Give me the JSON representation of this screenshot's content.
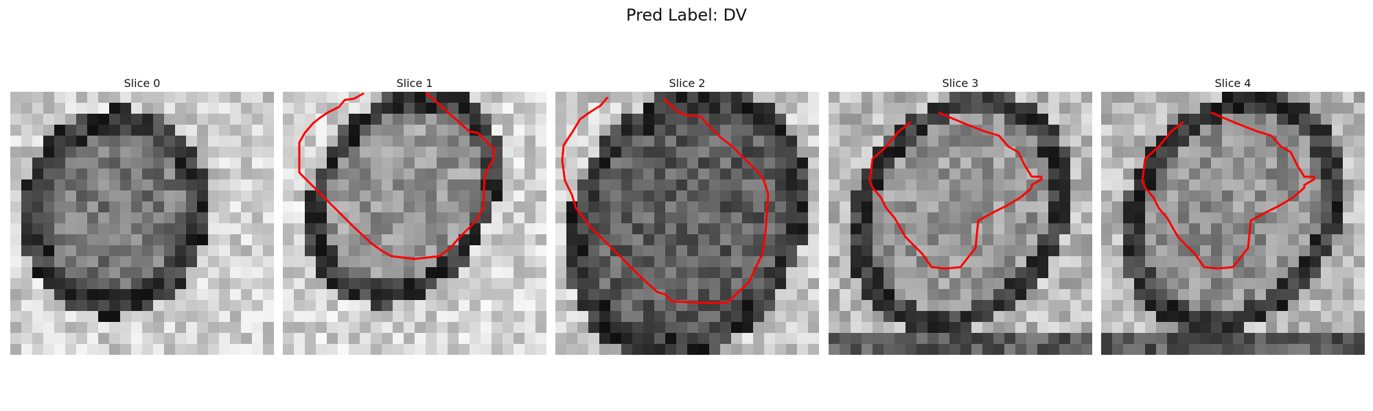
{
  "title": "Pred Label: DV",
  "panels": [
    {
      "label": "Slice 0",
      "has_contour": false
    },
    {
      "label": "Slice 1",
      "has_contour": true
    },
    {
      "label": "Slice 2",
      "has_contour": true
    },
    {
      "label": "Slice 3",
      "has_contour": true
    },
    {
      "label": "Slice 4",
      "has_contour": true
    }
  ],
  "colors": {
    "contour": "#ff0000",
    "background": "#ffffff"
  }
}
